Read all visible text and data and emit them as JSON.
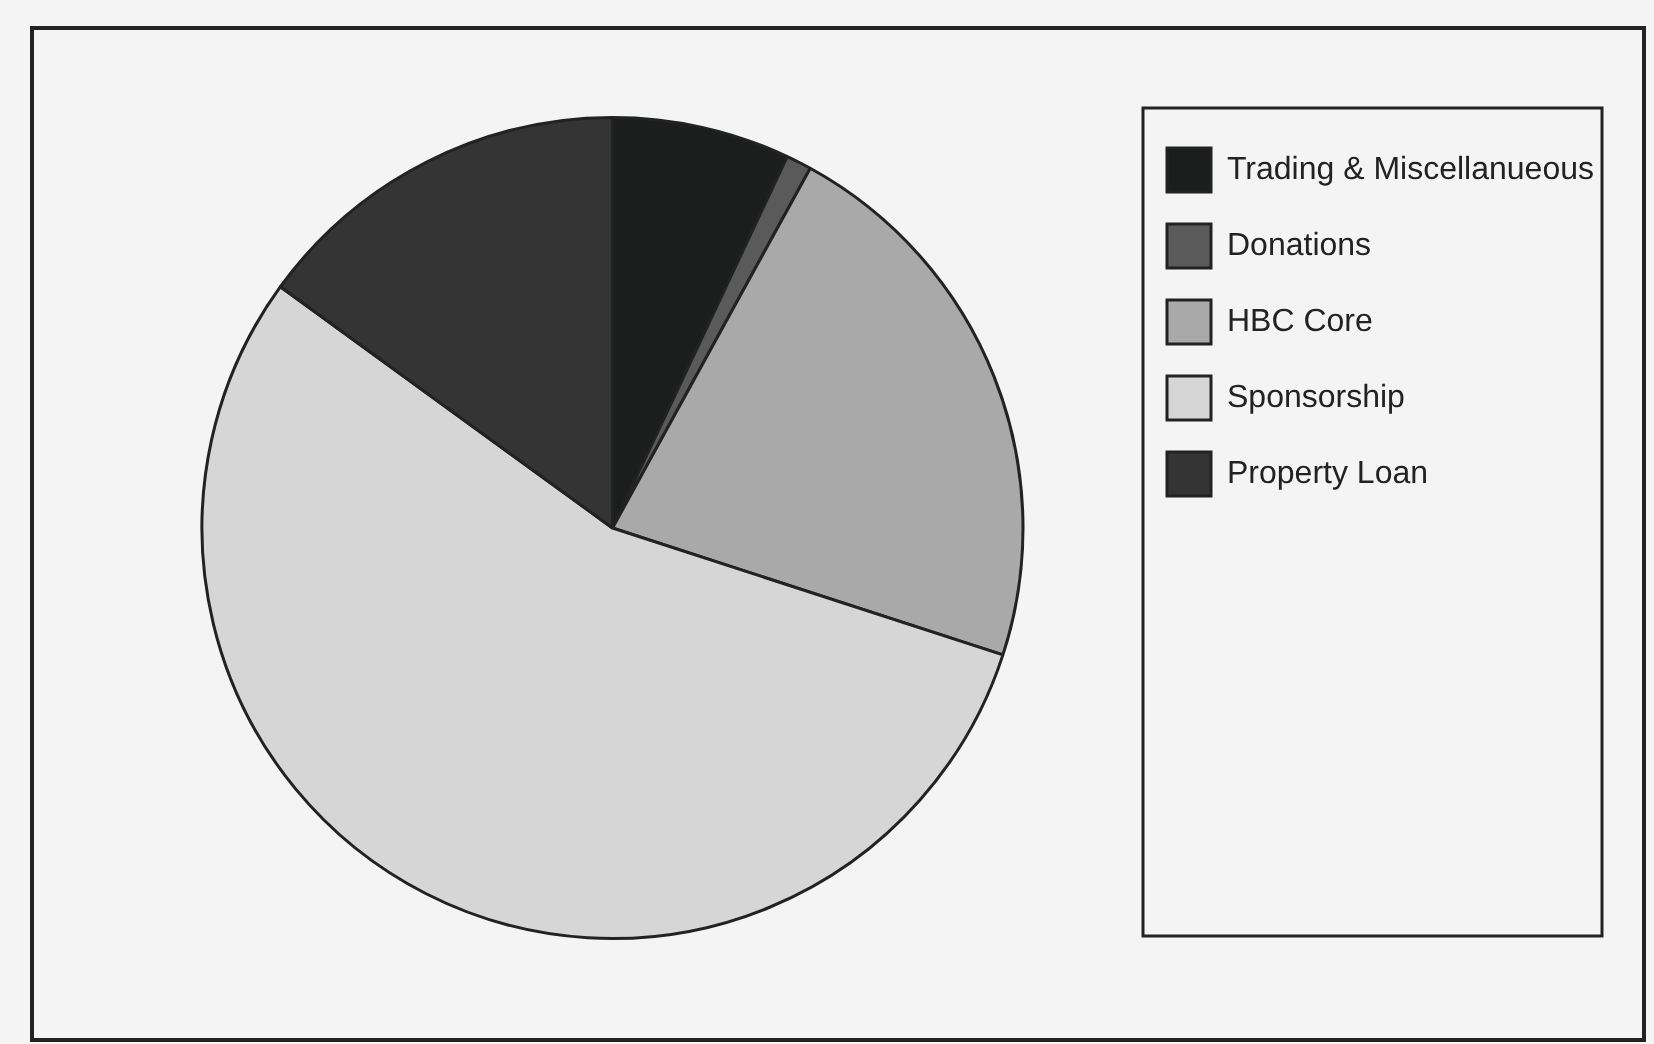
{
  "chart_data": {
    "type": "pie",
    "categories": [
      "Trading & Miscellanueous",
      "Donations",
      "HBC Core",
      "Sponsorship",
      "Property Loan"
    ],
    "values": [
      7,
      1,
      22,
      55,
      15
    ],
    "colors": [
      "#1c1e1e",
      "#5a5a5a",
      "#a9a9a9",
      "#d6d6d6",
      "#343434"
    ],
    "legend": "top right"
  }
}
